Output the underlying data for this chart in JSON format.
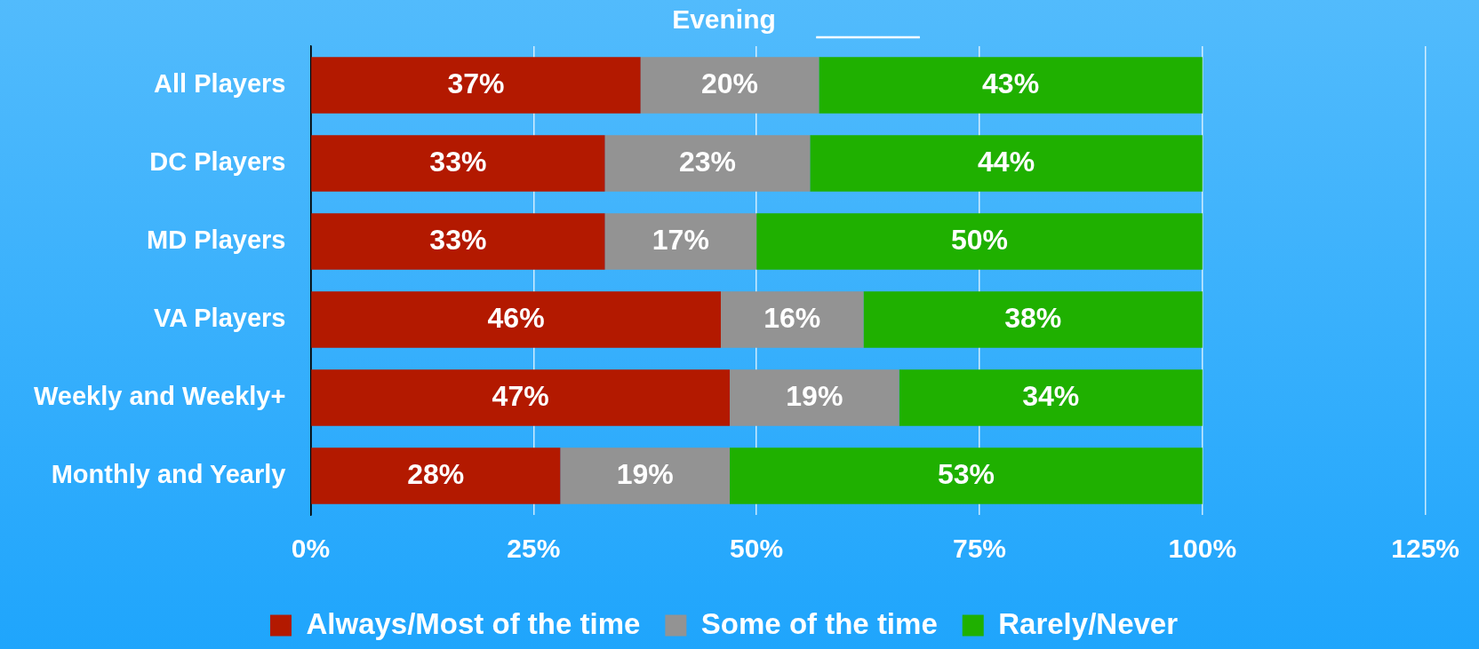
{
  "chart_data": {
    "type": "bar",
    "orientation": "horizontal",
    "stacked": true,
    "title": "Evening",
    "categories": [
      "All Players",
      "DC Players",
      "MD Players",
      "VA Players",
      "Weekly and Weekly+",
      "Monthly and Yearly"
    ],
    "series": [
      {
        "name": "Always/Most of the time",
        "color": "#b31900",
        "values": [
          37,
          33,
          33,
          46,
          47,
          28
        ],
        "value_labels": [
          "37%",
          "33%",
          "33%",
          "46%",
          "47%",
          "28%"
        ]
      },
      {
        "name": "Some of the time",
        "color": "#939393",
        "values": [
          20,
          23,
          17,
          16,
          19,
          19
        ],
        "value_labels": [
          "20%",
          "23%",
          "17%",
          "16%",
          "19%",
          "19%"
        ]
      },
      {
        "name": "Rarely/Never",
        "color": "#1fb000",
        "values": [
          43,
          44,
          50,
          38,
          34,
          53
        ],
        "value_labels": [
          "43%",
          "44%",
          "50%",
          "38%",
          "34%",
          "53%"
        ]
      }
    ],
    "xlim": [
      0,
      125
    ],
    "xticks": [
      {
        "value": 0,
        "label": "0%"
      },
      {
        "value": 25,
        "label": "25%"
      },
      {
        "value": 50,
        "label": "50%"
      },
      {
        "value": 75,
        "label": "75%"
      },
      {
        "value": 100,
        "label": "100%"
      },
      {
        "value": 125,
        "label": "125%"
      }
    ],
    "grid": "x",
    "legend": "bottom"
  }
}
